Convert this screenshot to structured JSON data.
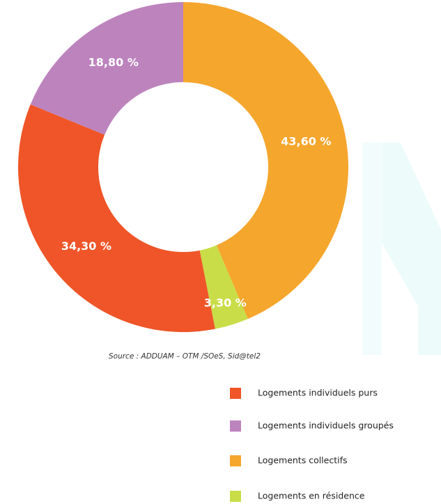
{
  "chart_data": {
    "type": "donut",
    "categories": [
      "Logements individuels purs",
      "Logements individuels groupés",
      "Logements collectifs",
      "Logements en résidence"
    ],
    "values": [
      34.3,
      18.8,
      43.6,
      3.3
    ],
    "value_labels": [
      "34,30 %",
      "18,80 %",
      "43,60 %",
      "3,30 %"
    ],
    "colors": [
      "#ef5528",
      "#bd83bd",
      "#f5a62d",
      "#c9dd48"
    ],
    "source": "Source : ADDUAM – OTM /SOeS, Sid@tel2"
  }
}
